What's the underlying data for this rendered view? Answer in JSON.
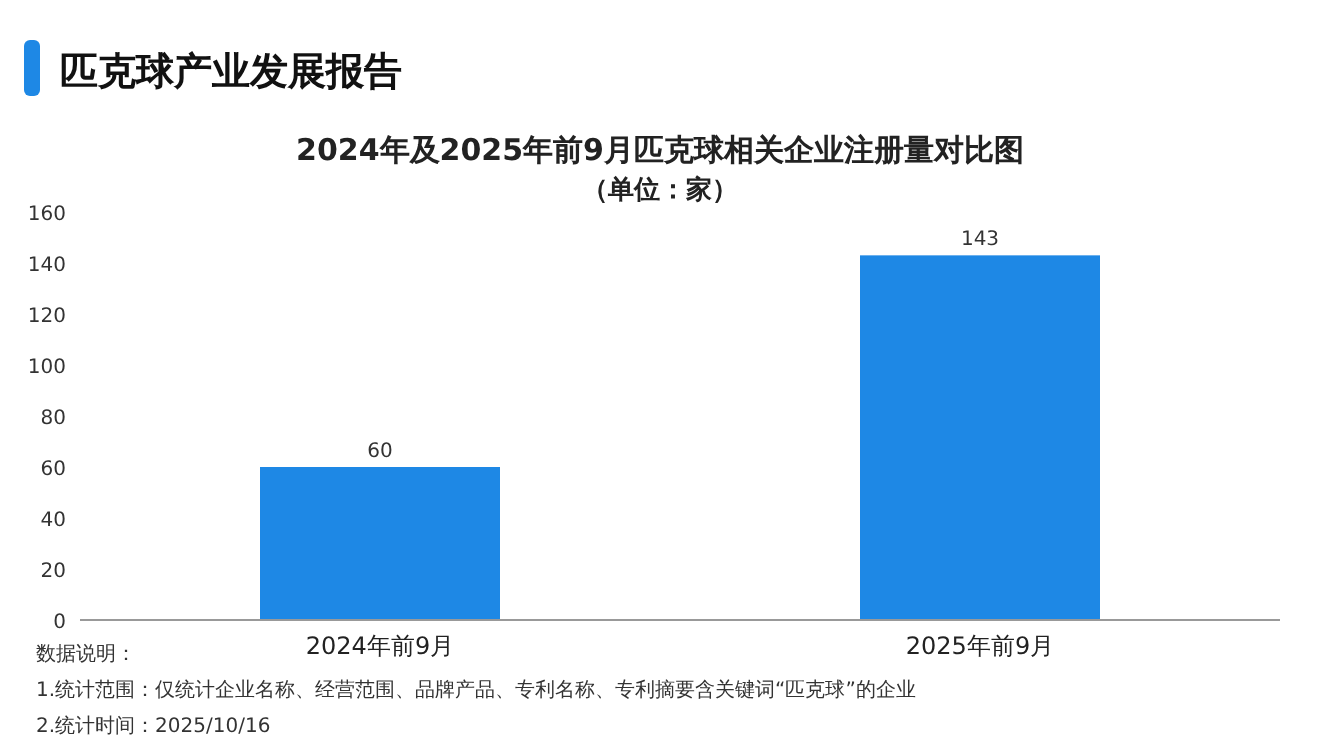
{
  "chart_data": {
    "type": "bar",
    "title": "2024年及2025年前9月匹克球相关企业注册量对比图",
    "subtitle": "（单位：家）",
    "categories": [
      "2024年前9月",
      "2025年前9月"
    ],
    "values": [
      60,
      143
    ],
    "color": "#1e88e5",
    "data_labels": true,
    "ylim": [
      0,
      160
    ],
    "yticks": [
      0,
      20,
      40,
      60,
      80,
      100,
      120,
      140,
      160
    ],
    "annotations": [
      "匹克球产业发展报告",
      "数据说明：",
      "1.统计范围：仅统计企业名称、经营范围、品牌产品、专利名称、专利摘要含关键词“匹克球”的企业",
      "2.统计时间：2025/10/16"
    ]
  }
}
